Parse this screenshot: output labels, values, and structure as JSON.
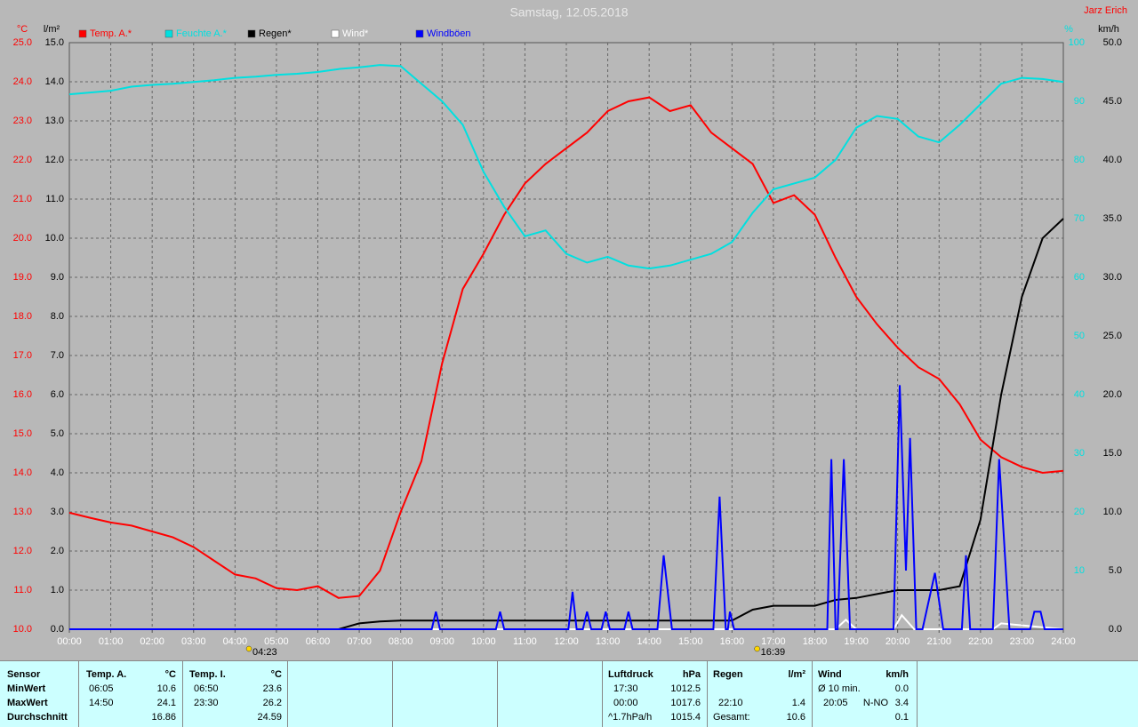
{
  "chart_data": {
    "type": "line",
    "title": "Samstag, 12.05.2018",
    "author": "Jarz Erich",
    "y_unit": "°C",
    "y2_unit": "l/m²",
    "y3_unit": "%",
    "y4_unit": "km/h",
    "x": [
      0,
      0.5,
      1,
      1.5,
      2,
      2.5,
      3,
      3.5,
      4,
      4.5,
      5,
      5.5,
      6,
      6.5,
      7,
      7.5,
      8,
      8.5,
      9,
      9.5,
      10,
      10.5,
      11,
      11.5,
      12,
      12.5,
      13,
      13.5,
      14,
      14.5,
      15,
      15.5,
      16,
      16.5,
      17,
      17.5,
      18,
      18.5,
      19,
      19.5,
      20,
      20.5,
      21,
      21.5,
      22,
      22.5,
      23,
      23.5,
      24
    ],
    "xlim": [
      0,
      24
    ],
    "xticks": [
      {
        "value": 0,
        "label": "00:00"
      },
      {
        "value": 1,
        "label": "01:00"
      },
      {
        "value": 2,
        "label": "02:00"
      },
      {
        "value": 3,
        "label": "03:00"
      },
      {
        "value": 4,
        "label": "04:00"
      },
      {
        "value": 5,
        "label": "05:00"
      },
      {
        "value": 6,
        "label": "06:00"
      },
      {
        "value": 7,
        "label": "07:00"
      },
      {
        "value": 8,
        "label": "08:00"
      },
      {
        "value": 9,
        "label": "09:00"
      },
      {
        "value": 10,
        "label": "10:00"
      },
      {
        "value": 11,
        "label": "11:00"
      },
      {
        "value": 12,
        "label": "12:00"
      },
      {
        "value": 13,
        "label": "13:00"
      },
      {
        "value": 14,
        "label": "14:00"
      },
      {
        "value": 15,
        "label": "15:00"
      },
      {
        "value": 16,
        "label": "16:00"
      },
      {
        "value": 17,
        "label": "17:00"
      },
      {
        "value": 18,
        "label": "18:00"
      },
      {
        "value": 19,
        "label": "19:00"
      },
      {
        "value": 20,
        "label": "20:00"
      },
      {
        "value": 21,
        "label": "21:00"
      },
      {
        "value": 22,
        "label": "22:00"
      },
      {
        "value": 23,
        "label": "23:00"
      },
      {
        "value": 24,
        "label": "24:00"
      }
    ],
    "ylim": [
      10,
      25
    ],
    "yticks": [
      {
        "value": 10,
        "label": "10.0"
      },
      {
        "value": 11,
        "label": "11.0"
      },
      {
        "value": 12,
        "label": "12.0"
      },
      {
        "value": 13,
        "label": "13.0"
      },
      {
        "value": 14,
        "label": "14.0"
      },
      {
        "value": 15,
        "label": "15.0"
      },
      {
        "value": 16,
        "label": "16.0"
      },
      {
        "value": 17,
        "label": "17.0"
      },
      {
        "value": 18,
        "label": "18.0"
      },
      {
        "value": 19,
        "label": "19.0"
      },
      {
        "value": 20,
        "label": "20.0"
      },
      {
        "value": 21,
        "label": "21.0"
      },
      {
        "value": 22,
        "label": "22.0"
      },
      {
        "value": 23,
        "label": "23.0"
      },
      {
        "value": 24,
        "label": "24.0"
      },
      {
        "value": 25,
        "label": "25.0"
      }
    ],
    "y2lim": [
      0,
      15
    ],
    "y2ticks": [
      {
        "value": 0,
        "label": "0.0"
      },
      {
        "value": 1,
        "label": "1.0"
      },
      {
        "value": 2,
        "label": "2.0"
      },
      {
        "value": 3,
        "label": "3.0"
      },
      {
        "value": 4,
        "label": "4.0"
      },
      {
        "value": 5,
        "label": "5.0"
      },
      {
        "value": 6,
        "label": "6.0"
      },
      {
        "value": 7,
        "label": "7.0"
      },
      {
        "value": 8,
        "label": "8.0"
      },
      {
        "value": 9,
        "label": "9.0"
      },
      {
        "value": 10,
        "label": "10.0"
      },
      {
        "value": 11,
        "label": "11.0"
      },
      {
        "value": 12,
        "label": "12.0"
      },
      {
        "value": 13,
        "label": "13.0"
      },
      {
        "value": 14,
        "label": "14.0"
      },
      {
        "value": 15,
        "label": "15.0"
      }
    ],
    "y3lim": [
      0,
      100
    ],
    "y3ticks": [
      10,
      20,
      30,
      40,
      50,
      60,
      70,
      80,
      90,
      100
    ],
    "y4lim": [
      0,
      50
    ],
    "y4ticks": [
      {
        "value": 0,
        "label": "0.0"
      },
      {
        "value": 5,
        "label": "5.0"
      },
      {
        "value": 10,
        "label": "10.0"
      },
      {
        "value": 15,
        "label": "15.0"
      },
      {
        "value": 20,
        "label": "20.0"
      },
      {
        "value": 25,
        "label": "25.0"
      },
      {
        "value": 30,
        "label": "30.0"
      },
      {
        "value": 35,
        "label": "35.0"
      },
      {
        "value": 40,
        "label": "40.0"
      },
      {
        "value": 45,
        "label": "45.0"
      },
      {
        "value": 50,
        "label": "50.0"
      }
    ],
    "grid": true,
    "series": [
      {
        "name": "Temp. A.*",
        "color": "#ff0000",
        "axis": "y",
        "values": [
          12.98,
          12.85,
          12.73,
          12.65,
          12.5,
          12.35,
          12.1,
          11.75,
          11.4,
          11.3,
          11.05,
          11.0,
          11.1,
          10.8,
          10.85,
          11.5,
          13.0,
          14.3,
          16.8,
          18.7,
          19.6,
          20.6,
          21.4,
          21.9,
          22.3,
          22.7,
          23.25,
          23.5,
          23.6,
          23.25,
          23.4,
          22.7,
          22.3,
          21.9,
          20.9,
          21.1,
          20.6,
          19.5,
          18.5,
          17.8,
          17.2,
          16.7,
          16.4,
          15.75,
          14.85,
          14.4,
          14.15,
          14.0,
          14.05
        ]
      },
      {
        "name": "Feuchte A.*",
        "color": "#00e0e0",
        "axis": "y3",
        "values": [
          91.2,
          91.5,
          91.8,
          92.5,
          92.8,
          93,
          93.3,
          93.6,
          94,
          94.2,
          94.5,
          94.7,
          95,
          95.5,
          95.8,
          96.2,
          96,
          93,
          90,
          86,
          78,
          72,
          67,
          68,
          64,
          62.5,
          63.5,
          62,
          61.5,
          62,
          63,
          64,
          66,
          71,
          75,
          76,
          77,
          80,
          85.5,
          87.5,
          87,
          84,
          83,
          86,
          89.5,
          93,
          94,
          93.8,
          93.3
        ]
      },
      {
        "name": "Regen*",
        "color": "#000000",
        "axis": "y2",
        "values": [
          0,
          0,
          0,
          0,
          0,
          0,
          0,
          0,
          0,
          0,
          0,
          0,
          0,
          0,
          0.15,
          0.2,
          0.22,
          0.22,
          0.22,
          0.22,
          0.22,
          0.22,
          0.22,
          0.22,
          0.22,
          0.22,
          0.22,
          0.22,
          0.22,
          0.22,
          0.22,
          0.22,
          0.22,
          0.5,
          0.6,
          0.6,
          0.6,
          0.75,
          0.8,
          0.9,
          1.0,
          1.0,
          1.0,
          1.1,
          2.8,
          6.0,
          8.5,
          10.0,
          10.5
        ]
      },
      {
        "name": "Wind*",
        "color": "#ffffff",
        "axis": "y4",
        "x": [
          0,
          18.5,
          18.75,
          19,
          19.9,
          20.1,
          20.4,
          22.3,
          22.5,
          24
        ],
        "values": [
          0,
          0,
          0.8,
          0,
          0,
          1.2,
          0,
          0,
          0.5,
          0
        ]
      },
      {
        "name": "Windböen",
        "color": "#0000ff",
        "axis": "y4",
        "x": [
          0,
          8.75,
          8.85,
          8.95,
          10.3,
          10.4,
          10.5,
          12.05,
          12.15,
          12.25,
          12.4,
          12.5,
          12.6,
          12.85,
          12.95,
          13.05,
          13.4,
          13.5,
          13.6,
          14.2,
          14.35,
          14.55,
          15.55,
          15.7,
          15.85,
          15.9,
          15.95,
          16.05,
          18.3,
          18.4,
          18.5,
          18.55,
          18.7,
          18.85,
          19.9,
          20.05,
          20.2,
          20.3,
          20.45,
          20.6,
          20.9,
          21.1,
          21.55,
          21.65,
          21.75,
          22.3,
          22.45,
          22.7,
          23.2,
          23.3,
          23.45,
          23.55,
          24
        ],
        "values": [
          0,
          0,
          1.5,
          0,
          0,
          1.5,
          0,
          0,
          3.2,
          0,
          0,
          1.5,
          0,
          0,
          1.5,
          0,
          0,
          1.5,
          0,
          0,
          6.3,
          0,
          0,
          11.3,
          0,
          0,
          1.5,
          0,
          0,
          14.5,
          0,
          0,
          14.5,
          0,
          0,
          20.8,
          5.0,
          16.3,
          0,
          0,
          4.8,
          0,
          0,
          6.3,
          0,
          0,
          14.5,
          0,
          0,
          1.5,
          1.5,
          0,
          0
        ]
      }
    ],
    "annotations": [
      {
        "x": 4.38,
        "label": "04:23"
      },
      {
        "x": 16.65,
        "label": "16:39"
      }
    ]
  },
  "stats": {
    "labels": {
      "header": "Sensor",
      "min": "MinWert",
      "max": "MaxWert",
      "avg": "Durchschnitt"
    },
    "temp_a": {
      "name": "Temp. A.",
      "unit": "°C",
      "min_time": "06:05",
      "min": 10.6,
      "max_time": "14:50",
      "max": 24.1,
      "avg": 16.86
    },
    "temp_i": {
      "name": "Temp. I.",
      "unit": "°C",
      "min_time": "06:50",
      "min": 23.6,
      "max_time": "23:30",
      "max": 26.2,
      "avg": 24.59
    },
    "pressure": {
      "name": "Luftdruck",
      "unit": "hPa",
      "min_time": "17:30",
      "min": 1012.5,
      "max_time": "00:00",
      "max": 1017.6,
      "avg_label": "^1.7hPa/h",
      "avg": 1015.4
    },
    "rain": {
      "name": "Regen",
      "unit": "l/m²",
      "max_time": "22:10",
      "max": 1.4,
      "total_label": "Gesamt:",
      "total": 10.6
    },
    "wind": {
      "name": "Wind",
      "unit": "km/h",
      "avg_label": "Ø 10 min.",
      "avg": "0.0",
      "max_time": "20:05",
      "max_dir": "N-NO",
      "max": 3.4,
      "mean": 0.1
    }
  }
}
